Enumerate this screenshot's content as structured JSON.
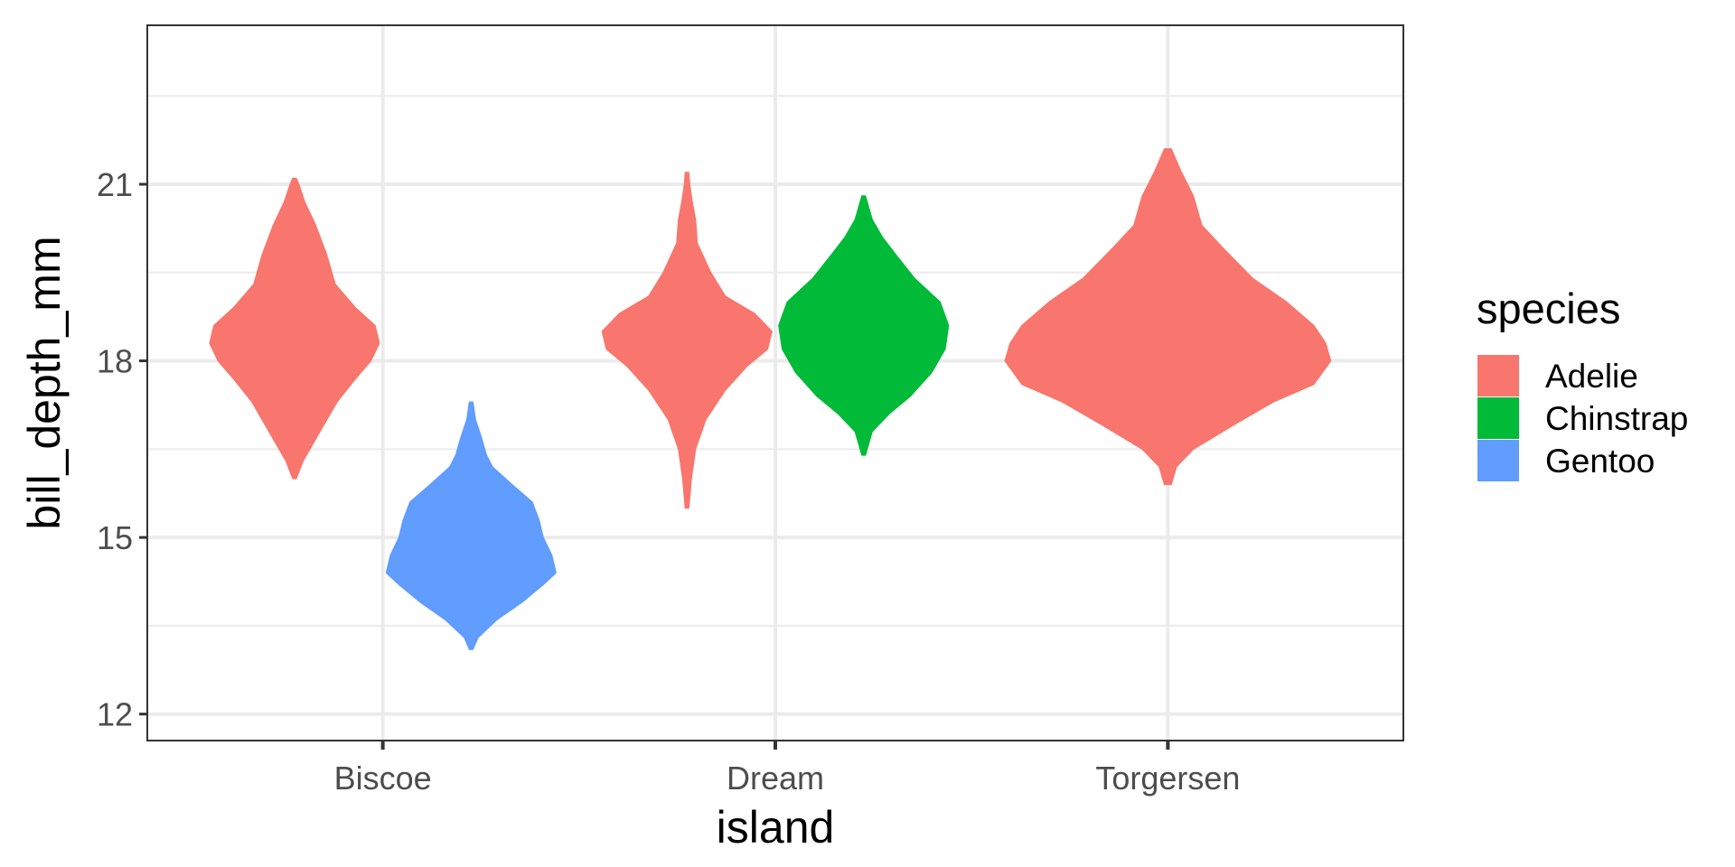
{
  "chart_data": {
    "type": "violin",
    "xlabel": "island",
    "ylabel": "bill_depth_mm",
    "categories": [
      "Biscoe",
      "Dream",
      "Torgersen"
    ],
    "ylim": [
      11.55,
      23.7
    ],
    "y_ticks": [
      12,
      15,
      18,
      21
    ],
    "grid": true,
    "legend": {
      "title": "species",
      "position": "right",
      "entries": [
        {
          "name": "Adelie",
          "color": "#F8766D"
        },
        {
          "name": "Chinstrap",
          "color": "#00BA38"
        },
        {
          "name": "Gentoo",
          "color": "#619CFF"
        }
      ]
    },
    "violins": [
      {
        "island": "Biscoe",
        "species": "Adelie",
        "color": "#F8766D",
        "min": 16.0,
        "max": 21.1,
        "dodge": -1,
        "profile": [
          [
            16.0,
            0.02
          ],
          [
            16.3,
            0.1
          ],
          [
            16.8,
            0.3
          ],
          [
            17.3,
            0.5
          ],
          [
            17.7,
            0.72
          ],
          [
            18.0,
            0.9
          ],
          [
            18.3,
            1.0
          ],
          [
            18.6,
            0.95
          ],
          [
            18.9,
            0.72
          ],
          [
            19.3,
            0.48
          ],
          [
            19.8,
            0.38
          ],
          [
            20.3,
            0.25
          ],
          [
            20.7,
            0.12
          ],
          [
            21.0,
            0.05
          ],
          [
            21.1,
            0.02
          ]
        ]
      },
      {
        "island": "Biscoe",
        "species": "Gentoo",
        "color": "#619CFF",
        "min": 13.1,
        "max": 17.3,
        "dodge": 1,
        "profile": [
          [
            13.1,
            0.02
          ],
          [
            13.3,
            0.08
          ],
          [
            13.6,
            0.3
          ],
          [
            13.9,
            0.6
          ],
          [
            14.2,
            0.85
          ],
          [
            14.4,
            1.0
          ],
          [
            14.7,
            0.95
          ],
          [
            15.0,
            0.85
          ],
          [
            15.3,
            0.8
          ],
          [
            15.6,
            0.72
          ],
          [
            15.9,
            0.48
          ],
          [
            16.2,
            0.25
          ],
          [
            16.4,
            0.18
          ],
          [
            16.7,
            0.12
          ],
          [
            17.0,
            0.05
          ],
          [
            17.3,
            0.02
          ]
        ]
      },
      {
        "island": "Dream",
        "species": "Adelie",
        "color": "#F8766D",
        "min": 15.5,
        "max": 21.2,
        "dodge": -1,
        "profile": [
          [
            15.5,
            0.02
          ],
          [
            16.0,
            0.05
          ],
          [
            16.5,
            0.1
          ],
          [
            17.0,
            0.22
          ],
          [
            17.5,
            0.45
          ],
          [
            17.9,
            0.7
          ],
          [
            18.2,
            0.95
          ],
          [
            18.5,
            1.0
          ],
          [
            18.8,
            0.8
          ],
          [
            19.1,
            0.45
          ],
          [
            19.5,
            0.28
          ],
          [
            20.0,
            0.12
          ],
          [
            20.4,
            0.1
          ],
          [
            20.7,
            0.06
          ],
          [
            21.0,
            0.03
          ],
          [
            21.2,
            0.02
          ]
        ]
      },
      {
        "island": "Dream",
        "species": "Chinstrap",
        "color": "#00BA38",
        "min": 16.4,
        "max": 20.8,
        "dodge": 1,
        "profile": [
          [
            16.4,
            0.02
          ],
          [
            16.8,
            0.1
          ],
          [
            17.1,
            0.3
          ],
          [
            17.4,
            0.55
          ],
          [
            17.8,
            0.8
          ],
          [
            18.2,
            0.96
          ],
          [
            18.6,
            1.0
          ],
          [
            19.0,
            0.9
          ],
          [
            19.4,
            0.6
          ],
          [
            19.8,
            0.38
          ],
          [
            20.1,
            0.22
          ],
          [
            20.4,
            0.1
          ],
          [
            20.8,
            0.02
          ]
        ]
      },
      {
        "island": "Torgersen",
        "species": "Adelie",
        "color": "#F8766D",
        "min": 15.9,
        "max": 21.6,
        "dodge": 0,
        "profile": [
          [
            15.9,
            0.02
          ],
          [
            16.2,
            0.05
          ],
          [
            16.5,
            0.15
          ],
          [
            16.9,
            0.38
          ],
          [
            17.3,
            0.62
          ],
          [
            17.6,
            0.86
          ],
          [
            18.0,
            0.96
          ],
          [
            18.3,
            0.93
          ],
          [
            18.6,
            0.86
          ],
          [
            19.0,
            0.7
          ],
          [
            19.4,
            0.5
          ],
          [
            19.9,
            0.33
          ],
          [
            20.3,
            0.2
          ],
          [
            20.8,
            0.15
          ],
          [
            21.2,
            0.08
          ],
          [
            21.6,
            0.02
          ]
        ]
      }
    ]
  }
}
